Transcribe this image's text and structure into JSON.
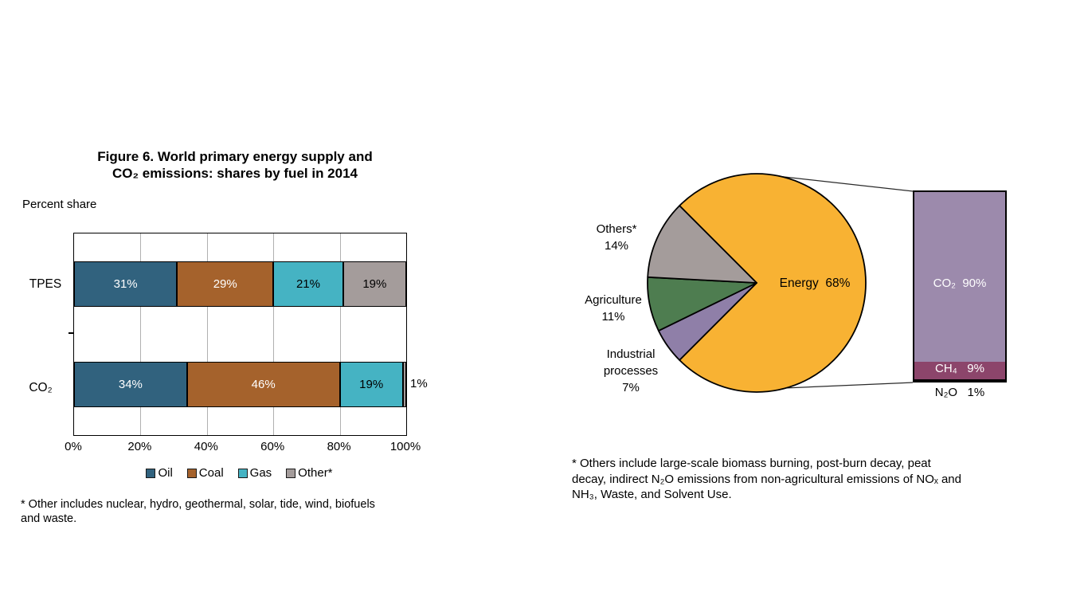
{
  "chart_data": [
    {
      "type": "bar",
      "subtype": "horizontal-stacked",
      "title": "Figure 6. World primary energy supply and CO₂ emissions: shares by fuel in 2014",
      "axis_caption": "Percent share",
      "categories": [
        "TPES",
        "CO₂"
      ],
      "series": [
        {
          "name": "Oil",
          "values": [
            31,
            34
          ],
          "color": "#31627E",
          "label_color": "#ffffff"
        },
        {
          "name": "Coal",
          "values": [
            29,
            46
          ],
          "color": "#A5622C",
          "label_color": "#ffffff"
        },
        {
          "name": "Gas",
          "values": [
            21,
            19
          ],
          "color": "#45B3C3",
          "label_color": "#000000"
        },
        {
          "name": "Other*",
          "values": [
            19,
            1
          ],
          "color": "#A49C9B",
          "label_color": "#000000"
        }
      ],
      "xlim": [
        0,
        100
      ],
      "x_ticks": [
        "0%",
        "20%",
        "40%",
        "60%",
        "80%",
        "100%"
      ],
      "grid": true,
      "legend_position": "bottom",
      "footnote": "* Other includes nuclear, hydro, geothermal, solar, tide, wind, biofuels and waste."
    },
    {
      "type": "pie",
      "slices": [
        {
          "label": "Energy",
          "pct": 68,
          "color": "#F8B233"
        },
        {
          "label": "Industrial processes",
          "pct": 7,
          "color": "#8F7FA8"
        },
        {
          "label": "Agriculture",
          "pct": 11,
          "color": "#4E7D50"
        },
        {
          "label": "Others*",
          "pct": 14,
          "color": "#A49C9B"
        }
      ],
      "footnote": "* Others include large-scale biomass burning, post-burn decay, peat decay, indirect N₂O emissions from non-agricultural emissions of NOₓ and NH₃, Waste, and Solvent Use."
    },
    {
      "type": "bar",
      "subtype": "vertical-stacked-bar-of-pie",
      "categories": [
        "Energy"
      ],
      "series": [
        {
          "name": "CO₂",
          "values": [
            90
          ],
          "color": "#9C8AAC",
          "label_color": "#ffffff"
        },
        {
          "name": "CH₄",
          "values": [
            9
          ],
          "color": "#8C456B",
          "label_color": "#ffffff"
        },
        {
          "name": "N₂O",
          "values": [
            1
          ],
          "color": "#000000",
          "label_color": "#000000"
        }
      ]
    }
  ],
  "left_chart": {
    "title1": "Figure 6. World primary energy supply and",
    "title2": "CO₂ emissions: shares by fuel in 2014",
    "caption": "Percent share",
    "row_labels": [
      "TPES",
      "CO₂"
    ],
    "outside_label": "1%",
    "x_ticks": [
      "0%",
      "20%",
      "40%",
      "60%",
      "80%",
      "100%"
    ],
    "legend": [
      {
        "label": "Oil",
        "color": "#31627E"
      },
      {
        "label": "Coal",
        "color": "#A5622C"
      },
      {
        "label": "Gas",
        "color": "#45B3C3"
      },
      {
        "label": "Other*",
        "color": "#A49C9B"
      }
    ],
    "footnote_lines": [
      "* Other includes nuclear, hydro, geothermal, solar, tide, wind, biofuels",
      "and waste."
    ]
  },
  "right_chart": {
    "pie_labels": {
      "others": {
        "line1": "Others*",
        "line2": "14%"
      },
      "agriculture": {
        "line1": "Agriculture",
        "line2": "11%"
      },
      "industrial": {
        "line1": "Industrial",
        "line2": "processes",
        "line3": "7%"
      },
      "energy": "Energy  68%"
    },
    "bar_labels": {
      "co2": "CO₂  90%",
      "ch4": "CH₄   9%",
      "n2o": "N₂O   1%"
    },
    "footnote_lines": [
      "* Others include large-scale biomass burning, post-burn decay, peat",
      "decay, indirect N₂O emissions from non-agricultural emissions of NOₓ and",
      "NH₃, Waste, and Solvent Use."
    ]
  }
}
